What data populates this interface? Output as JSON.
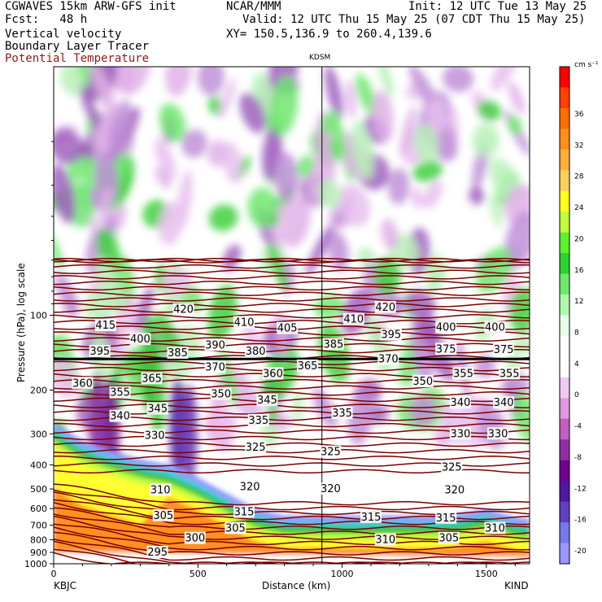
{
  "header": {
    "line1_left": "CGWAVES 15km ARW-GFS init",
    "line1_mid": "NCAR/MMM",
    "line1_right": "Init: 12 UTC Tue 13 May 25",
    "line2_left": "Fcst:   48 h",
    "line2_right": "Valid: 12 UTC Thu 15 May 25 (07 CDT Thu 15 May 25)",
    "line3_left": "Vertical velocity",
    "line3_right": "XY= 150.5,136.9 to 260.4,139.6",
    "line4_left": "Boundary Layer Tracer",
    "line5_left": "Potential Temperature"
  },
  "chart_data": {
    "type": "heatmap",
    "marker_label": "KDSM",
    "marker_x_km": 930,
    "xlabel": "Distance (km)",
    "ylabel": "Pressure (hPa), log scale",
    "x_range": [
      0,
      1650
    ],
    "x_ticks": [
      0,
      500,
      1000,
      1500
    ],
    "left_endpoint": "KBJC",
    "right_endpoint": "KIND",
    "y_scale": "log",
    "y_range_hPa": [
      1000,
      10
    ],
    "y_ticks": [
      100,
      200,
      300,
      400,
      500,
      600,
      700,
      800,
      900,
      1000
    ],
    "colorbar": {
      "units": "cm s⁻¹",
      "labels": [
        36,
        32,
        28,
        24,
        20,
        16,
        12,
        8,
        4,
        0,
        -4,
        -8,
        -12,
        -16,
        -20
      ],
      "colors": [
        "#ff0000",
        "#ff4000",
        "#ff7000",
        "#ff9020",
        "#ffb040",
        "#ffd060",
        "#ffff20",
        "#c0ff40",
        "#60f030",
        "#30d030",
        "#70e870",
        "#b0f8b0",
        "#e8ffe8",
        "#ffffff",
        "#ffffff",
        "#f0c8f0",
        "#e098e0",
        "#c060c0",
        "#9030a0",
        "#700090",
        "#5018a0",
        "#6040c0",
        "#7878e8",
        "#9898ff"
      ]
    },
    "isentropes_K": [
      {
        "value": 295,
        "label_x_km": 360,
        "label_p": 900
      },
      {
        "value": 300,
        "label_x_km": 490,
        "label_p": 790
      },
      {
        "value": 305,
        "label_x_km": 380,
        "label_p": 640,
        "label2_x_km": 1370,
        "label2_p": 790
      },
      {
        "value": 305,
        "label_x_km": 630,
        "label_p": 720
      },
      {
        "value": 310,
        "label_x_km": 370,
        "label_p": 505,
        "label2_x_km": 1150,
        "label2_p": 800,
        "label3_x_km": 1530,
        "label3_p": 720
      },
      {
        "value": 315,
        "label_x_km": 660,
        "label_p": 620,
        "label2_x_km": 1100,
        "label2_p": 650,
        "label3_x_km": 1360,
        "label3_p": 655
      },
      {
        "value": 320,
        "label_x_km": 680,
        "label_p": 490,
        "label2_x_km": 960,
        "label2_p": 500,
        "label3_x_km": 1390,
        "label3_p": 505
      },
      {
        "value": 325,
        "label_x_km": 700,
        "label_p": 340,
        "label2_x_km": 960,
        "label2_p": 355,
        "label3_x_km": 1380,
        "label3_p": 410
      },
      {
        "value": 330,
        "label_x_km": 350,
        "label_p": 305,
        "label2_x_km": 1410,
        "label2_p": 300,
        "label3_x_km": 1540,
        "label3_p": 300
      },
      {
        "value": 335,
        "label_x_km": 710,
        "label_p": 265,
        "label2_x_km": 1000,
        "label2_p": 248
      },
      {
        "value": 340,
        "label_x_km": 230,
        "label_p": 255,
        "label2_x_km": 1410,
        "label2_p": 225,
        "label3_x_km": 1560,
        "label3_p": 225
      },
      {
        "value": 345,
        "label_x_km": 360,
        "label_p": 238,
        "label2_x_km": 740,
        "label2_p": 220
      },
      {
        "value": 350,
        "label_x_km": 580,
        "label_p": 208,
        "label2_x_km": 1280,
        "label2_p": 185
      },
      {
        "value": 355,
        "label_x_km": 230,
        "label_p": 205,
        "label2_x_km": 1420,
        "label2_p": 172,
        "label3_x_km": 1580,
        "label3_p": 172
      },
      {
        "value": 360,
        "label_x_km": 100,
        "label_p": 188,
        "label2_x_km": 760,
        "label2_p": 172
      },
      {
        "value": 365,
        "label_x_km": 340,
        "label_p": 180,
        "label2_x_km": 880,
        "label2_p": 160
      },
      {
        "value": 370,
        "label_x_km": 560,
        "label_p": 162,
        "label2_x_km": 1160,
        "label2_p": 150
      },
      {
        "value": 375,
        "label_x_km": 1360,
        "label_p": 137,
        "label2_x_km": 1560,
        "label2_p": 138
      },
      {
        "value": 380,
        "label_x_km": 700,
        "label_p": 140
      },
      {
        "value": 385,
        "label_x_km": 430,
        "label_p": 142,
        "label2_x_km": 970,
        "label2_p": 131
      },
      {
        "value": 390,
        "label_x_km": 560,
        "label_p": 132
      },
      {
        "value": 395,
        "label_x_km": 160,
        "label_p": 140,
        "label2_x_km": 1170,
        "label2_p": 120
      },
      {
        "value": 400,
        "label_x_km": 300,
        "label_p": 125,
        "label2_x_km": 1360,
        "label2_p": 112,
        "label3_x_km": 1530,
        "label3_p": 112
      },
      {
        "value": 405,
        "label_x_km": 810,
        "label_p": 113
      },
      {
        "value": 410,
        "label_x_km": 660,
        "label_p": 107,
        "label2_x_km": 1040,
        "label2_p": 104
      },
      {
        "value": 415,
        "label_x_km": 180,
        "label_p": 110
      },
      {
        "value": 420,
        "label_x_km": 450,
        "label_p": 95,
        "label2_x_km": 1150,
        "label2_p": 93
      }
    ],
    "isentrope_label_ids": [
      "295",
      "300",
      "305",
      "310",
      "315",
      "320",
      "325",
      "330",
      "335",
      "340",
      "345",
      "350",
      "355",
      "360",
      "365",
      "370",
      "375",
      "380",
      "385",
      "390",
      "395",
      "400",
      "405",
      "410",
      "415",
      "420"
    ]
  },
  "labels": {
    "tick_1000": "1000",
    "tick_900": "900",
    "tick_800": "800",
    "tick_700": "700",
    "tick_600": "600",
    "tick_500": "500",
    "tick_400": "400",
    "tick_300": "300",
    "tick_200": "200",
    "tick_100": "100",
    "x0": "0",
    "x500": "500",
    "x1000": "1000",
    "x1500": "1500"
  }
}
